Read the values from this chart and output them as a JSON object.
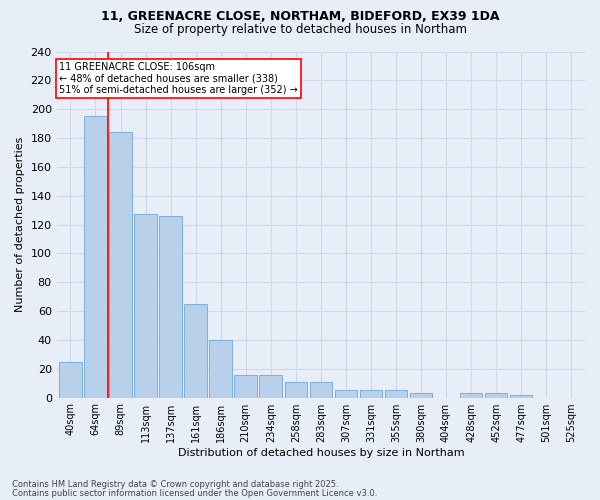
{
  "title1": "11, GREENACRE CLOSE, NORTHAM, BIDEFORD, EX39 1DA",
  "title2": "Size of property relative to detached houses in Northam",
  "xlabel": "Distribution of detached houses by size in Northam",
  "ylabel": "Number of detached properties",
  "footer1": "Contains HM Land Registry data © Crown copyright and database right 2025.",
  "footer2": "Contains public sector information licensed under the Open Government Licence v3.0.",
  "categories": [
    "40sqm",
    "64sqm",
    "89sqm",
    "113sqm",
    "137sqm",
    "161sqm",
    "186sqm",
    "210sqm",
    "234sqm",
    "258sqm",
    "283sqm",
    "307sqm",
    "331sqm",
    "355sqm",
    "380sqm",
    "404sqm",
    "428sqm",
    "452sqm",
    "477sqm",
    "501sqm",
    "525sqm"
  ],
  "values": [
    25,
    195,
    184,
    127,
    126,
    65,
    40,
    16,
    16,
    11,
    11,
    5,
    5,
    5,
    3,
    0,
    3,
    3,
    2,
    0,
    0
  ],
  "bar_color": "#b8d0ea",
  "bar_edge_color": "#6fa8d5",
  "grid_color": "#cdd8e8",
  "background_color": "#e8eef8",
  "vline_x": 1.5,
  "vline_color": "red",
  "annotation_title": "11 GREENACRE CLOSE: 106sqm",
  "annotation_line1": "← 48% of detached houses are smaller (338)",
  "annotation_line2": "51% of semi-detached houses are larger (352) →",
  "annotation_box_color": "white",
  "annotation_box_edge": "red",
  "ylim": [
    0,
    240
  ],
  "yticks": [
    0,
    20,
    40,
    60,
    80,
    100,
    120,
    140,
    160,
    180,
    200,
    220,
    240
  ]
}
